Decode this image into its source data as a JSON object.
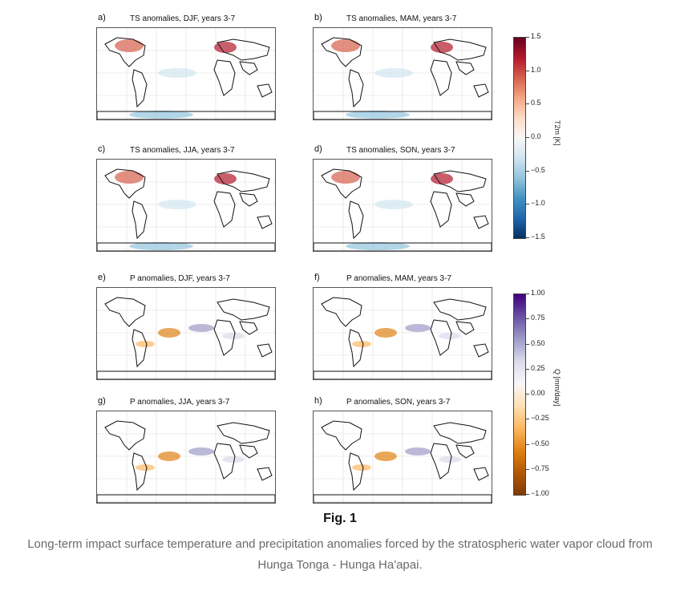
{
  "panels": [
    {
      "label": "a)",
      "title": "TS anomalies, DJF, years 3-7",
      "kind": "ts"
    },
    {
      "label": "b)",
      "title": "TS anomalies, MAM, years 3-7",
      "kind": "ts"
    },
    {
      "label": "c)",
      "title": "TS anomalies, JJA, years 3-7",
      "kind": "ts"
    },
    {
      "label": "d)",
      "title": "TS anomalies, SON, years 3-7",
      "kind": "ts"
    },
    {
      "label": "e)",
      "title": "P anomalies, DJF, years 3-7",
      "kind": "p"
    },
    {
      "label": "f)",
      "title": "P anomalies, MAM, years 3-7",
      "kind": "p"
    },
    {
      "label": "g)",
      "title": "P anomalies, JJA, years 3-7",
      "kind": "p"
    },
    {
      "label": "h)",
      "title": "P anomalies, SON, years 3-7",
      "kind": "p"
    }
  ],
  "colorbars": {
    "ts": {
      "label": "T2m [K]",
      "ticks": [
        "1.5",
        "1.0",
        "0.5",
        "0.0",
        "−0.5",
        "−1.0",
        "−1.5"
      ],
      "colors": [
        "#67001f",
        "#b2182b",
        "#d6604d",
        "#f4a582",
        "#fddbc7",
        "#f7f7f7",
        "#d1e5f0",
        "#92c5de",
        "#4393c3",
        "#2166ac",
        "#053061"
      ]
    },
    "p": {
      "label": "Q [mm/day]",
      "ticks": [
        "1.00",
        "0.75",
        "0.50",
        "0.25",
        "0.00",
        "−0.25",
        "−0.50",
        "−0.75",
        "−1.00"
      ],
      "colors": [
        "#3f007d",
        "#6a51a3",
        "#9e9ac8",
        "#dadaeb",
        "#f7f7f7",
        "#fee0b6",
        "#fdb863",
        "#e08214",
        "#b35806",
        "#7f3b08"
      ]
    }
  },
  "figure": {
    "title": "Fig. 1",
    "caption": "Long-term impact surface temperature and precipitation anomalies forced by the stratospheric water vapor cloud from Hunga Tonga - Hunga Ha'apai."
  }
}
